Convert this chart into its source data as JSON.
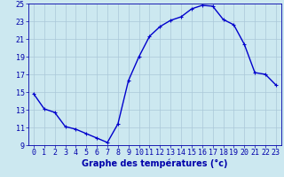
{
  "hours": [
    0,
    1,
    2,
    3,
    4,
    5,
    6,
    7,
    8,
    9,
    10,
    11,
    12,
    13,
    14,
    15,
    16,
    17,
    18,
    19,
    20,
    21,
    22,
    23
  ],
  "temps": [
    14.8,
    13.1,
    12.7,
    11.1,
    10.8,
    10.3,
    9.8,
    9.3,
    11.4,
    16.3,
    19.0,
    21.3,
    22.4,
    23.1,
    23.5,
    24.4,
    24.8,
    24.7,
    23.2,
    22.6,
    20.4,
    17.2,
    17.0,
    15.8
  ],
  "line_color": "#0000cc",
  "marker": "+",
  "markersize": 3,
  "bg_color": "#cce8f0",
  "grid_color": "#aac8d8",
  "axis_color": "#0000aa",
  "ylim": [
    9,
    25
  ],
  "yticks": [
    9,
    11,
    13,
    15,
    17,
    19,
    21,
    23,
    25
  ],
  "xlabel": "Graphe des températures (°c)",
  "xlabel_fontsize": 7,
  "tick_fontsize": 6,
  "linewidth": 1.0
}
